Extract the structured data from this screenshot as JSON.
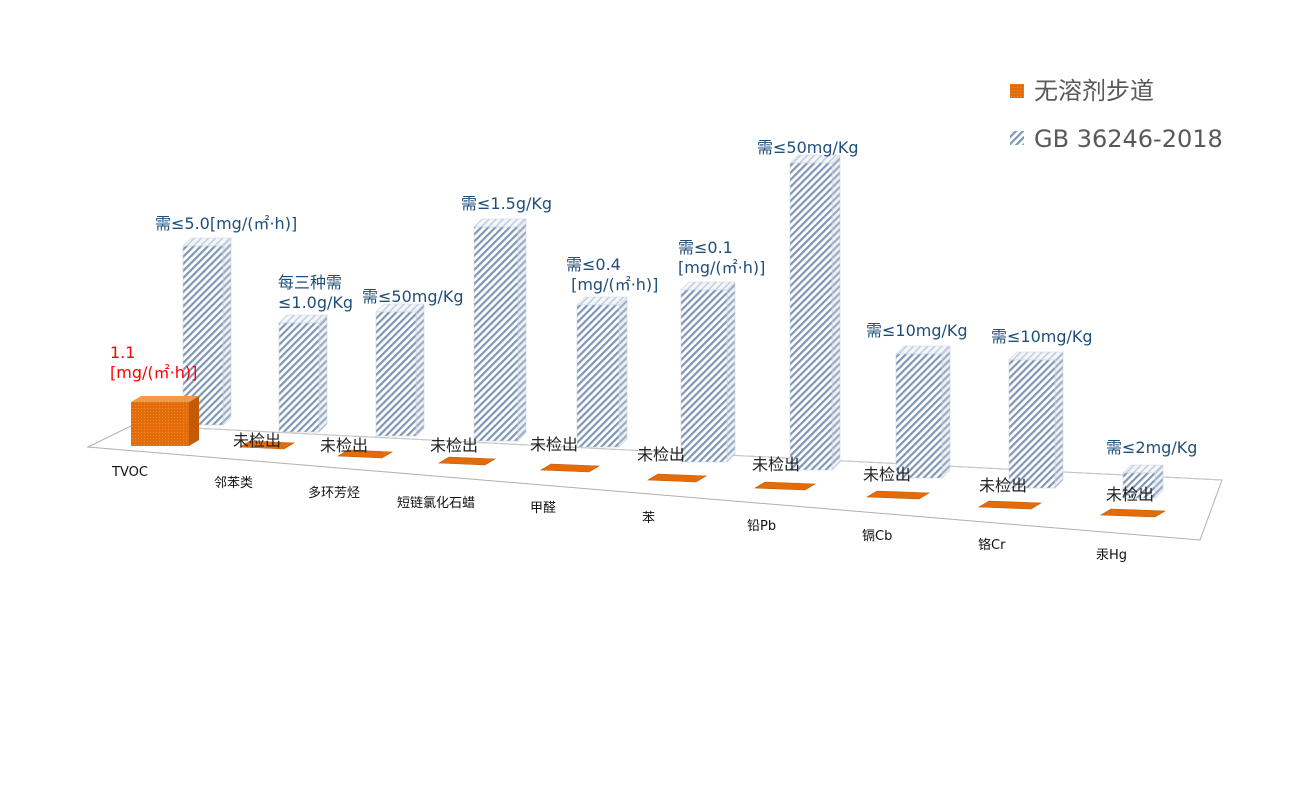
{
  "chart_data": {
    "type": "bar",
    "categories": [
      "TVOC",
      "邻苯类",
      "多环芳烃",
      "短链氯化石蜡",
      "甲醛",
      "苯",
      "铅Pb",
      "镉Cb",
      "铬Cr",
      "汞Hg"
    ],
    "series": [
      {
        "name": "无溶剂步道",
        "color": "#e36c09",
        "values": [
          1.1,
          0,
          0,
          0,
          0,
          0,
          0,
          0,
          0,
          0
        ],
        "labels": [
          [
            "1.1",
            "[mg/(㎡·h)]"
          ],
          [
            "未检出"
          ],
          [
            "未检出"
          ],
          [
            "未检出"
          ],
          [
            "未检出"
          ],
          [
            "未检出"
          ],
          [
            "未检出"
          ],
          [
            "未检出"
          ],
          [
            "未检出"
          ],
          [
            "未检出"
          ]
        ]
      },
      {
        "name": "GB 36246-2018",
        "color": "#b8c7d8",
        "pattern": "diagonal-hatch",
        "values": [
          5.0,
          1.0,
          50,
          1.5,
          0.4,
          0.1,
          50,
          10,
          10,
          2
        ],
        "labels": [
          [
            "需≤5.0[mg/(㎡·h)]"
          ],
          [
            "每三种需",
            "≤1.0g/Kg"
          ],
          [
            "需≤50mg/Kg"
          ],
          [
            "需≤1.5g/Kg"
          ],
          [
            "需≤0.4",
            " [mg/(㎡·h)]"
          ],
          [
            "需≤0.1",
            "[mg/(㎡·h)]"
          ],
          [
            "需≤50mg/Kg"
          ],
          [
            "需≤10mg/Kg"
          ],
          [
            "需≤10mg/Kg"
          ],
          [
            "需≤2mg/Kg"
          ]
        ]
      }
    ],
    "legend_position": "top-right",
    "grid": false,
    "style": "3d-column"
  }
}
